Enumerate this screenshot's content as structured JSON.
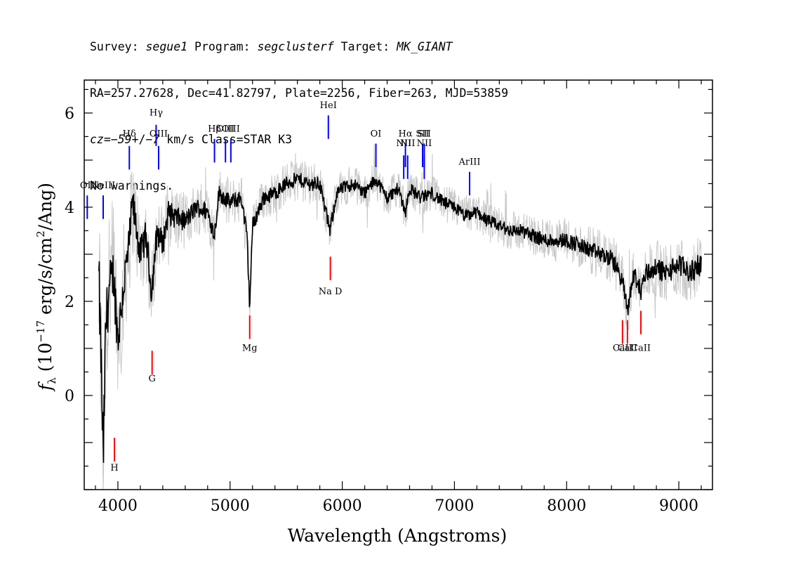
{
  "header": {
    "line1": [
      {
        "t": "Survey: ",
        "i": false
      },
      {
        "t": "segue1",
        "i": true
      },
      {
        "t": " Program: ",
        "i": false
      },
      {
        "t": "segclusterf",
        "i": true
      },
      {
        "t": " Target: ",
        "i": false
      },
      {
        "t": "MK_GIANT",
        "i": true
      }
    ],
    "line2": [
      {
        "t": "RA=257.27628, Dec=41.82797, Plate=2256, Fiber=263, MJD=53859",
        "i": false
      }
    ],
    "line3": [
      {
        "t": "cz",
        "i": true
      },
      {
        "t": "=",
        "i": false
      },
      {
        "t": "−59",
        "i": true
      },
      {
        "t": "+/−",
        "i": false
      },
      {
        "t": "7",
        "i": true
      },
      {
        "t": " km/s Class=STAR K3",
        "i": false
      }
    ],
    "line4": [
      {
        "t": "No warnings.",
        "i": false
      }
    ]
  },
  "chart_data": {
    "type": "line",
    "xlabel": "Wavelength (Angstroms)",
    "ylabel": "f_λ (10^-17 erg/s/cm^2/Ang)",
    "ylabel_parts": {
      "f": "f",
      "sub": "λ",
      "pre": "(10",
      "exp1": "−17",
      "mid": " erg/s/cm",
      "exp2": "2",
      "post": "/Ang)"
    },
    "xlim": [
      3700,
      9300
    ],
    "ylim": [
      -2,
      6.7
    ],
    "xticks": [
      4000,
      5000,
      6000,
      7000,
      8000,
      9000
    ],
    "ytick_labels": [
      0,
      2,
      4,
      6
    ],
    "x_minor_step": 200,
    "y_minor_step": 0.5,
    "series": [
      {
        "role": "flux",
        "color": "#000000",
        "x": [
          3830,
          3850,
          3870,
          3890,
          3920,
          3960,
          4000,
          4050,
          4100,
          4130,
          4200,
          4250,
          4300,
          4350,
          4400,
          4450,
          4500,
          4600,
          4700,
          4800,
          4860,
          4900,
          5000,
          5100,
          5150,
          5175,
          5200,
          5250,
          5300,
          5400,
          5500,
          5600,
          5700,
          5800,
          5890,
          5950,
          6000,
          6100,
          6200,
          6300,
          6400,
          6500,
          6563,
          6600,
          6700,
          6800,
          6900,
          7000,
          7100,
          7200,
          7300,
          7400,
          7500,
          7600,
          7700,
          7800,
          7900,
          8000,
          8100,
          8200,
          8300,
          8400,
          8450,
          8500,
          8542,
          8600,
          8662,
          8700,
          8800,
          8900,
          9000,
          9100,
          9200
        ],
        "y": [
          2.4,
          0.8,
          -1.5,
          1.4,
          2.2,
          2.6,
          1.2,
          2.3,
          3.2,
          4.1,
          3.0,
          3.4,
          2.2,
          3.5,
          3.2,
          3.9,
          3.8,
          3.7,
          4.0,
          3.9,
          3.4,
          4.3,
          4.1,
          4.2,
          3.4,
          1.9,
          3.6,
          3.9,
          4.2,
          4.3,
          4.5,
          4.6,
          4.5,
          4.5,
          3.5,
          4.3,
          4.4,
          4.5,
          4.3,
          4.6,
          4.2,
          4.4,
          3.9,
          4.4,
          4.2,
          4.3,
          4.1,
          4.0,
          3.8,
          3.9,
          3.7,
          3.6,
          3.5,
          3.5,
          3.4,
          3.3,
          3.3,
          3.3,
          3.2,
          3.1,
          3.0,
          2.9,
          2.7,
          2.4,
          1.8,
          2.6,
          2.2,
          2.6,
          2.7,
          2.6,
          2.8,
          2.6,
          2.8
        ]
      },
      {
        "role": "error-envelope",
        "color": "#c8c8c8",
        "x": [
          3830,
          3900,
          4000,
          4100,
          4200,
          4300,
          4400,
          4600,
          4800,
          5000,
          5200,
          5400,
          5600,
          5800,
          6000,
          6300,
          6600,
          7000,
          7400,
          7800,
          8200,
          8500,
          8800,
          9200
        ],
        "halfwidth": [
          2.2,
          1.8,
          1.5,
          1.2,
          1.0,
          0.9,
          0.8,
          0.6,
          0.55,
          0.5,
          0.5,
          0.45,
          0.45,
          0.45,
          0.4,
          0.4,
          0.4,
          0.4,
          0.4,
          0.45,
          0.5,
          0.55,
          0.6,
          0.7
        ]
      }
    ],
    "emission_lines": [
      {
        "label": "OII",
        "wave": 3727,
        "label_y": 4.4,
        "y_top": 4.25,
        "y_bot": 3.75
      },
      {
        "label": "NeIII",
        "wave": 3869,
        "label_y": 4.4,
        "y_top": 4.25,
        "y_bot": 3.75
      },
      {
        "label": "Hδ",
        "wave": 4102,
        "label_y": 5.5,
        "y_top": 5.3,
        "y_bot": 4.8
      },
      {
        "label": "Hγ",
        "wave": 4341,
        "label_y": 5.95,
        "y_top": 5.75,
        "y_bot": 5.3
      },
      {
        "label": "OIII",
        "wave": 4363,
        "label_y": 5.5,
        "y_top": 5.3,
        "y_bot": 4.8
      },
      {
        "label": "Hβ",
        "wave": 4861,
        "label_y": 5.6,
        "y_top": 5.45,
        "y_bot": 4.95
      },
      {
        "label": "OIII",
        "wave": 4959,
        "label_y": 5.6,
        "y_top": 5.45,
        "y_bot": 4.95
      },
      {
        "label": "OIII",
        "wave": 5007,
        "label_y": 5.6,
        "y_top": 5.45,
        "y_bot": 4.95
      },
      {
        "label": "HeI",
        "wave": 5876,
        "label_y": 6.1,
        "y_top": 5.95,
        "y_bot": 5.45
      },
      {
        "label": "OI",
        "wave": 6300,
        "label_y": 5.5,
        "y_top": 5.35,
        "y_bot": 4.85
      },
      {
        "label": "NII",
        "wave": 6548,
        "label_y": 5.3,
        "y_top": 5.1,
        "y_bot": 4.6
      },
      {
        "label": "Hα",
        "wave": 6563,
        "label_y": 5.5,
        "y_top": 5.35,
        "y_bot": 4.85
      },
      {
        "label": "NII",
        "wave": 6583,
        "label_y": 5.3,
        "y_top": 5.1,
        "y_bot": 4.6
      },
      {
        "label": "SII",
        "wave": 6716,
        "label_y": 5.5,
        "y_top": 5.35,
        "y_bot": 4.85
      },
      {
        "label": "SII",
        "wave": 6731,
        "label_y": 5.5,
        "y_top": 5.35,
        "y_bot": 4.85
      },
      {
        "label": "NII",
        "wave": 6731,
        "label_y": 5.3,
        "y_top": 5.1,
        "y_bot": 4.6
      },
      {
        "label": "ArIII",
        "wave": 7135,
        "label_y": 4.9,
        "y_top": 4.75,
        "y_bot": 4.25
      }
    ],
    "absorption_lines": [
      {
        "label": "H",
        "wave": 3969,
        "label_y": -1.6,
        "y_top": -0.9,
        "y_bot": -1.4
      },
      {
        "label": "G",
        "wave": 4305,
        "label_y": 0.3,
        "y_top": 0.95,
        "y_bot": 0.45
      },
      {
        "label": "Mg",
        "wave": 5175,
        "label_y": 0.95,
        "y_top": 1.7,
        "y_bot": 1.2
      },
      {
        "label": "Na  D",
        "wave": 5894,
        "label_y": 2.15,
        "y_top": 2.95,
        "y_bot": 2.45
      },
      {
        "label": "CaII",
        "wave": 8498,
        "label_y": 0.95,
        "y_top": 1.6,
        "y_bot": 1.1
      },
      {
        "label": "CaII",
        "wave": 8542,
        "label_y": 0.95,
        "y_top": 1.6,
        "y_bot": 1.1
      },
      {
        "label": "CaII",
        "wave": 8662,
        "label_y": 0.95,
        "y_top": 1.8,
        "y_bot": 1.3
      }
    ],
    "emission_color": "#0000ff",
    "absorption_color": "#ff0000"
  }
}
